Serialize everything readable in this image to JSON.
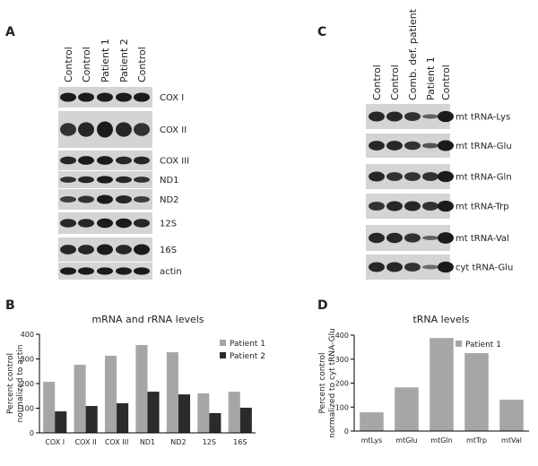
{
  "panels": [
    "A",
    "B",
    "C",
    "D"
  ],
  "blots": {
    "A": {
      "lanes": [
        "Control",
        "Control",
        "Patient 1",
        "Patient 2",
        "Control"
      ],
      "rows": [
        "COX I",
        "COX II",
        "COX III",
        "ND1",
        "ND2",
        "12S",
        "16S",
        "actin"
      ]
    },
    "C": {
      "lanes": [
        "Control",
        "Control",
        "Comb. def. patient",
        "Patient 1",
        "Control"
      ],
      "rows": [
        "mt tRNA-Lys",
        "mt tRNA-Glu",
        "mt tRNA-Gln",
        "mt tRNA-Trp",
        "mt tRNA-Val",
        "cyt tRNA-Glu"
      ]
    }
  },
  "chart_data": [
    {
      "type": "bar",
      "title": "mRNA and rRNA levels",
      "ylabel": [
        "Percent control",
        "normalized to actin"
      ],
      "categories": [
        "COX I",
        "COX II",
        "COX III",
        "ND1",
        "ND2",
        "12S",
        "16S"
      ],
      "series": [
        {
          "name": "Patient 1",
          "color": "#a6a6a6",
          "values": [
            207,
            276,
            313,
            356,
            327,
            160,
            167
          ]
        },
        {
          "name": "Patient 2",
          "color": "#2b2b2b",
          "values": [
            87,
            109,
            120,
            167,
            156,
            80,
            102
          ]
        }
      ],
      "ylim": [
        0,
        400
      ],
      "yticks": [
        0,
        100,
        200,
        300,
        400
      ],
      "legend": "top-right"
    },
    {
      "type": "bar",
      "title": "tRNA levels",
      "ylabel": [
        "Percent control",
        "normalized to cyt tRNA-Glu"
      ],
      "categories": [
        "mtLys",
        "mtGlu",
        "mtGln",
        "mtTrp",
        "mtVal"
      ],
      "series": [
        {
          "name": "Patient 1",
          "color": "#a6a6a6",
          "values": [
            78,
            182,
            388,
            325,
            131
          ]
        }
      ],
      "ylim": [
        0,
        400
      ],
      "yticks": [
        0,
        100,
        200,
        300,
        400
      ],
      "legend": "top-right"
    }
  ]
}
